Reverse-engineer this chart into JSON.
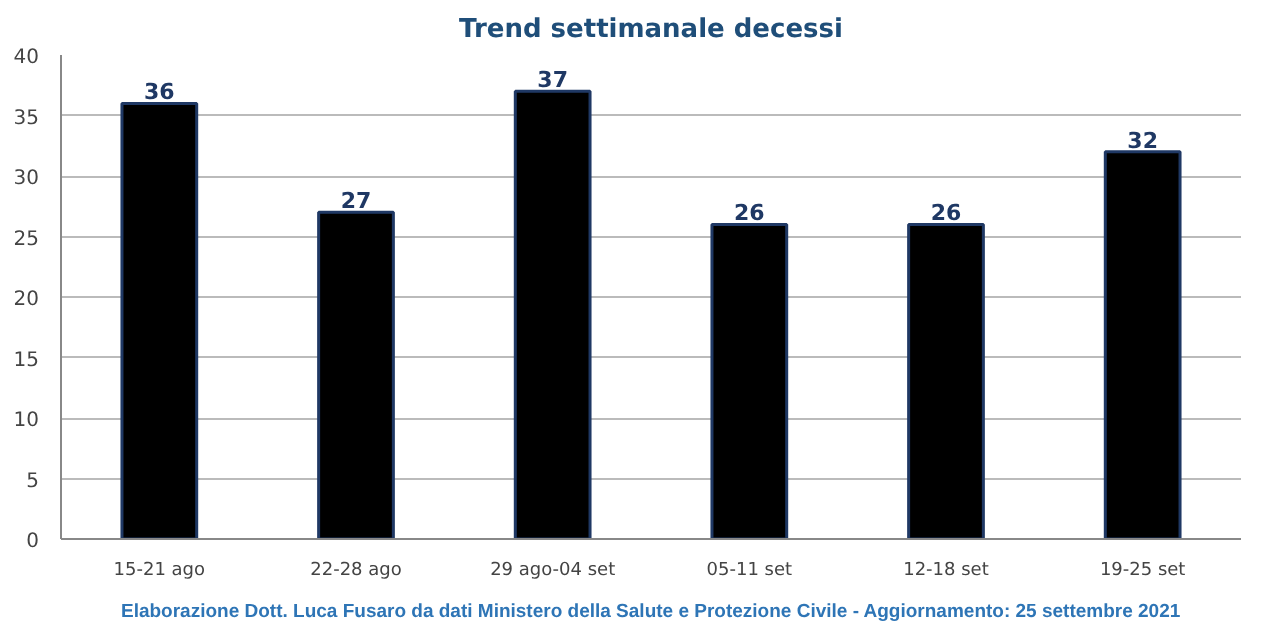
{
  "chart_data": {
    "type": "bar",
    "title": "Trend settimanale decessi",
    "categories": [
      "15-21 ago",
      "22-28 ago",
      "29 ago-04 set",
      "05-11 set",
      "12-18 set",
      "19-25 set"
    ],
    "values": [
      36,
      27,
      37,
      26,
      26,
      32
    ],
    "color": "#000000",
    "ylim": [
      0,
      40
    ],
    "yticks": [
      0,
      5,
      10,
      15,
      20,
      25,
      30,
      35,
      40
    ],
    "grid": "y",
    "data_labels": true,
    "annotations": [
      "Elaborazione Dott. Luca Fusaro da dati Ministero della Salute e Protezione Civile - Aggiornamento: 25 settembre 2021"
    ]
  }
}
